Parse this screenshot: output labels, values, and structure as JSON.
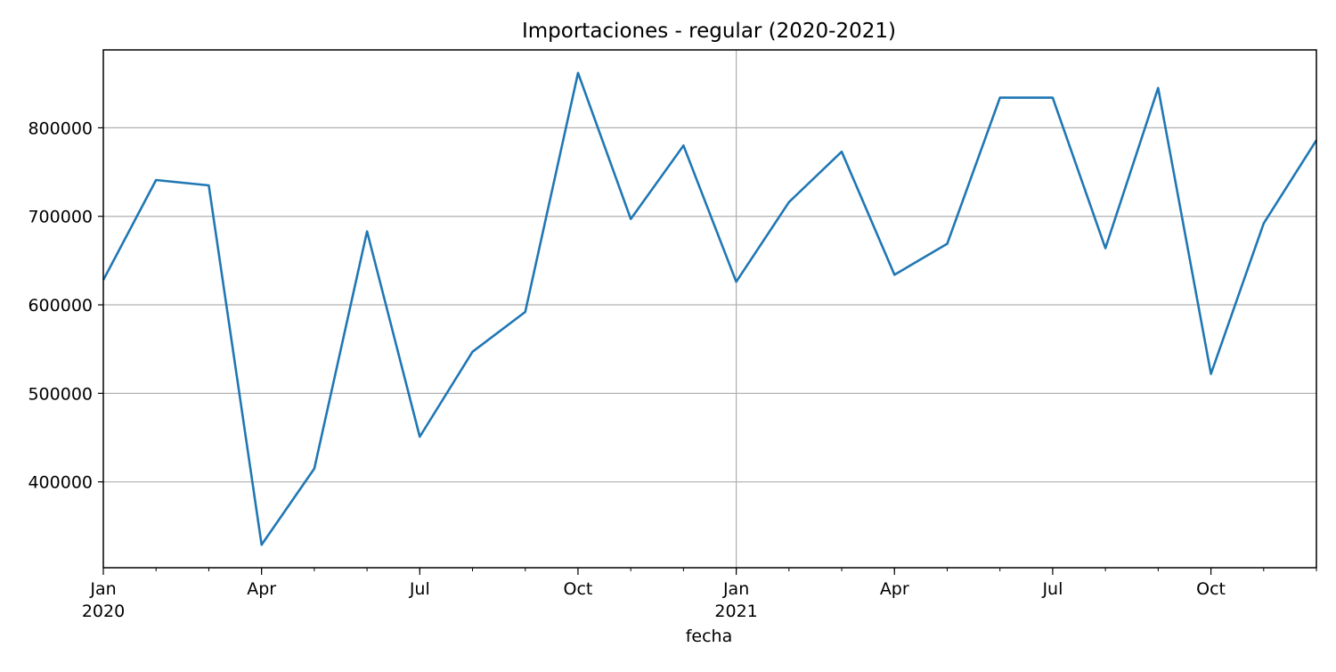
{
  "chart_data": {
    "type": "line",
    "title": "Importaciones - regular (2020-2021)",
    "xlabel": "fecha",
    "ylabel": "",
    "x": [
      "2020-01",
      "2020-02",
      "2020-03",
      "2020-04",
      "2020-05",
      "2020-06",
      "2020-07",
      "2020-08",
      "2020-09",
      "2020-10",
      "2020-11",
      "2020-12",
      "2021-01",
      "2021-02",
      "2021-03",
      "2021-04",
      "2021-05",
      "2021-06",
      "2021-07",
      "2021-08",
      "2021-09",
      "2021-10",
      "2021-11",
      "2021-12"
    ],
    "series": [
      {
        "values": [
          628000,
          741000,
          735000,
          329000,
          415000,
          683000,
          451000,
          547000,
          592000,
          862000,
          697000,
          780000,
          626000,
          716000,
          773000,
          634000,
          669000,
          834000,
          834000,
          664000,
          845000,
          522000,
          692000,
          786000
        ],
        "color": "#1f77b4"
      }
    ],
    "ylim": [
      303000,
      888000
    ],
    "yticks": [
      400000,
      500000,
      600000,
      700000,
      800000
    ],
    "yticks_labels": [
      "400000",
      "500000",
      "600000",
      "700000",
      "800000"
    ],
    "xticks_major": [
      {
        "month": 0,
        "label": "Jan",
        "year": "2020"
      },
      {
        "month": 3,
        "label": "Apr",
        "year": ""
      },
      {
        "month": 6,
        "label": "Jul",
        "year": ""
      },
      {
        "month": 9,
        "label": "Oct",
        "year": ""
      },
      {
        "month": 12,
        "label": "Jan",
        "year": "2021"
      },
      {
        "month": 15,
        "label": "Apr",
        "year": ""
      },
      {
        "month": 18,
        "label": "Jul",
        "year": ""
      },
      {
        "month": 21,
        "label": "Oct",
        "year": ""
      }
    ],
    "grid": true,
    "legend": "none"
  }
}
